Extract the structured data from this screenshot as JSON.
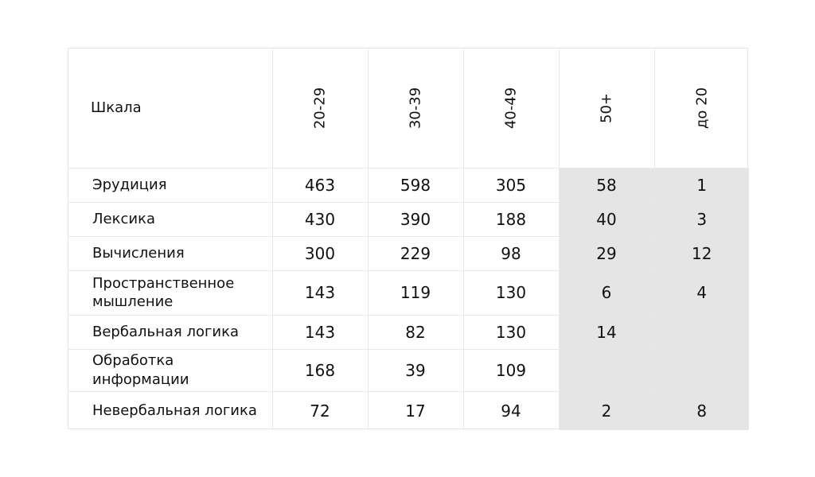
{
  "chart_data": {
    "type": "table",
    "header": {
      "scale_label": "Шкала",
      "age_groups": [
        "20-29",
        "30-39",
        "40-49",
        "50+",
        "до 20"
      ]
    },
    "rows": [
      {
        "name": "Эрудиция",
        "values": [
          "463",
          "598",
          "305",
          "58",
          "1"
        ]
      },
      {
        "name": "Лексика",
        "values": [
          "430",
          "390",
          "188",
          "40",
          "3"
        ]
      },
      {
        "name": "Вычисления",
        "values": [
          "300",
          "229",
          "98",
          "29",
          "12"
        ]
      },
      {
        "name": "Пространственное мышление",
        "values": [
          "143",
          "119",
          "130",
          "6",
          "4"
        ]
      },
      {
        "name": "Вербальная логика",
        "values": [
          "143",
          "82",
          "130",
          "14",
          ""
        ]
      },
      {
        "name": "Обработка информации",
        "values": [
          "168",
          "39",
          "109",
          "",
          ""
        ]
      },
      {
        "name": "Невербальная логика",
        "values": [
          "72",
          "17",
          "94",
          "2",
          "8"
        ]
      }
    ],
    "shaded_columns": [
      "50+",
      "до 20"
    ],
    "shade_color": "#e6e5e6"
  }
}
